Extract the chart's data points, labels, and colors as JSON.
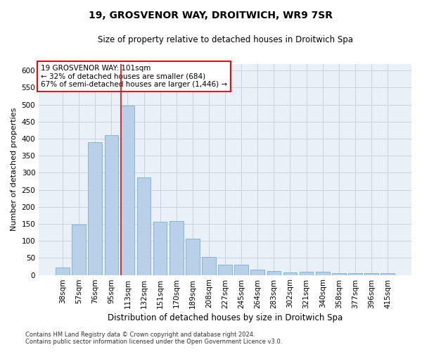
{
  "title1": "19, GROSVENOR WAY, DROITWICH, WR9 7SR",
  "title2": "Size of property relative to detached houses in Droitwich Spa",
  "xlabel": "Distribution of detached houses by size in Droitwich Spa",
  "ylabel": "Number of detached properties",
  "categories": [
    "38sqm",
    "57sqm",
    "76sqm",
    "95sqm",
    "113sqm",
    "132sqm",
    "151sqm",
    "170sqm",
    "189sqm",
    "208sqm",
    "227sqm",
    "245sqm",
    "264sqm",
    "283sqm",
    "302sqm",
    "321sqm",
    "340sqm",
    "358sqm",
    "377sqm",
    "396sqm",
    "415sqm"
  ],
  "values": [
    22,
    148,
    390,
    410,
    497,
    287,
    157,
    158,
    107,
    53,
    30,
    30,
    16,
    11,
    8,
    9,
    9,
    5,
    6,
    5,
    5
  ],
  "bar_color": "#b8d0e8",
  "bar_edge_color": "#7aafc8",
  "grid_color": "#c8d4e0",
  "background_color": "#eaf0f8",
  "annotation_box_text": "19 GROSVENOR WAY: 101sqm\n← 32% of detached houses are smaller (684)\n67% of semi-detached houses are larger (1,446) →",
  "annotation_box_color": "white",
  "annotation_box_edge_color": "red",
  "red_line_x": 4,
  "bar_width": 0.85,
  "ylim": [
    0,
    620
  ],
  "yticks": [
    0,
    50,
    100,
    150,
    200,
    250,
    300,
    350,
    400,
    450,
    500,
    550,
    600
  ],
  "footer_line1": "Contains HM Land Registry data © Crown copyright and database right 2024.",
  "footer_line2": "Contains public sector information licensed under the Open Government Licence v3.0."
}
